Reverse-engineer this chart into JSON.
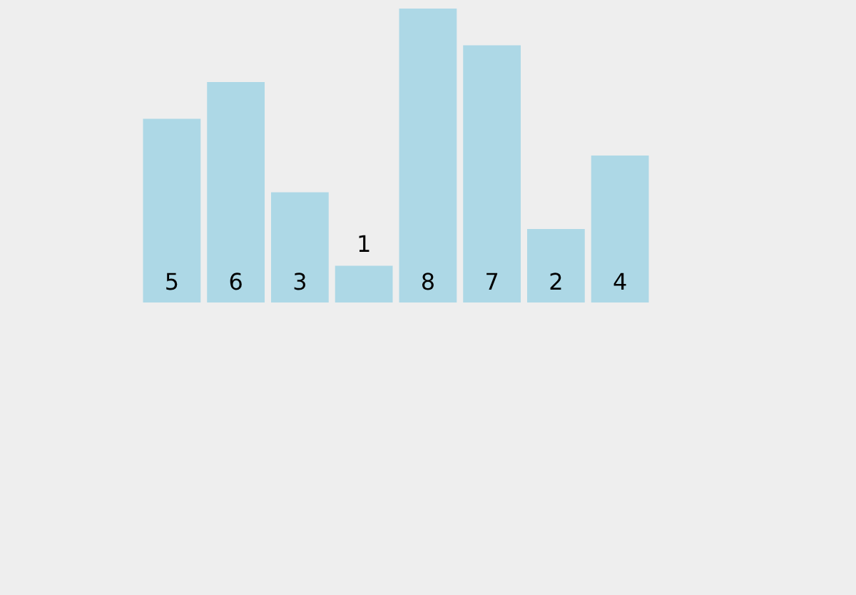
{
  "chart_data": {
    "type": "bar",
    "categories": [
      null,
      null,
      null,
      null,
      null,
      null,
      null,
      null
    ],
    "values": [
      5,
      6,
      3,
      1,
      8,
      7,
      2,
      4
    ],
    "color": "#add8e6",
    "ylim": [
      0,
      8
    ],
    "data_labels": true,
    "tick_labels": false,
    "legend": false
  }
}
